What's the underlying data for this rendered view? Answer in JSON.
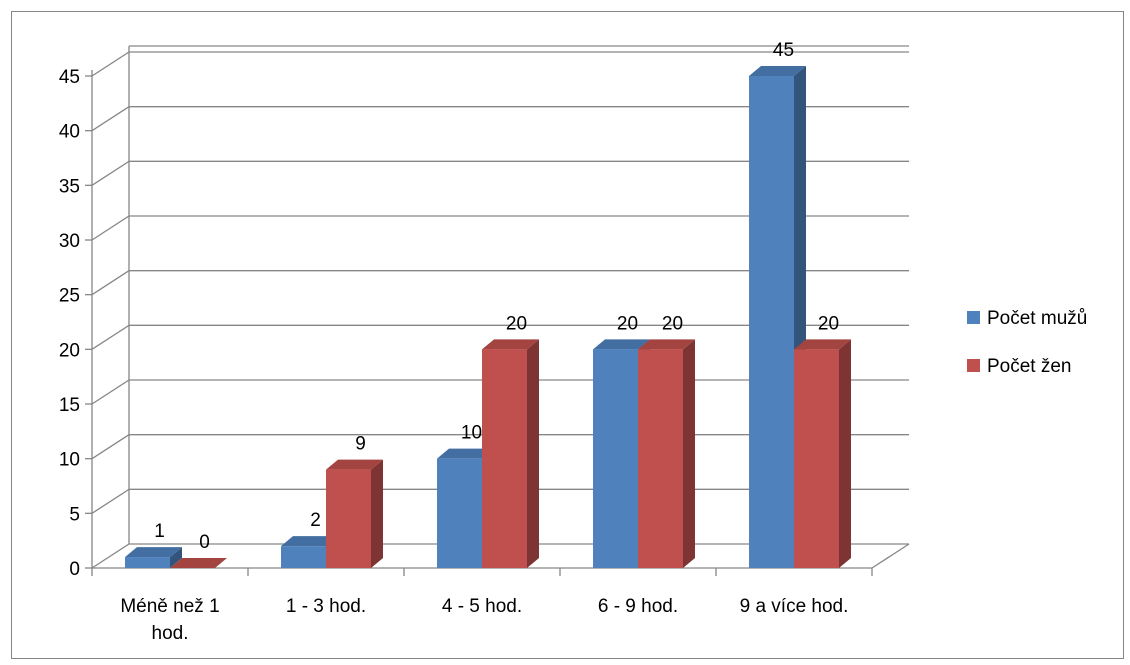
{
  "chart_data": {
    "type": "bar",
    "title": "",
    "xlabel": "",
    "ylabel": "",
    "categories": [
      "Méně než 1 hod.",
      "1 - 3 hod.",
      "4 - 5 hod.",
      "6 - 9 hod.",
      "9 a více hod."
    ],
    "category_lines": [
      [
        "Méně než 1",
        "hod."
      ],
      [
        "1 - 3 hod."
      ],
      [
        "4 - 5 hod."
      ],
      [
        "6 - 9 hod."
      ],
      [
        "9 a více hod."
      ]
    ],
    "series": [
      {
        "name": "Počet mužů",
        "values": [
          1,
          2,
          10,
          20,
          45
        ],
        "color": "#4F81BD"
      },
      {
        "name": "Počet žen",
        "values": [
          0,
          9,
          20,
          20,
          20
        ],
        "color": "#C0504D"
      }
    ],
    "ylim": [
      0,
      45
    ],
    "yticks": [
      "0",
      "5",
      "10",
      "15",
      "20",
      "25",
      "30",
      "35",
      "40",
      "45"
    ],
    "grid": true,
    "legend_position": "right",
    "style": "3d-clustered-column"
  }
}
